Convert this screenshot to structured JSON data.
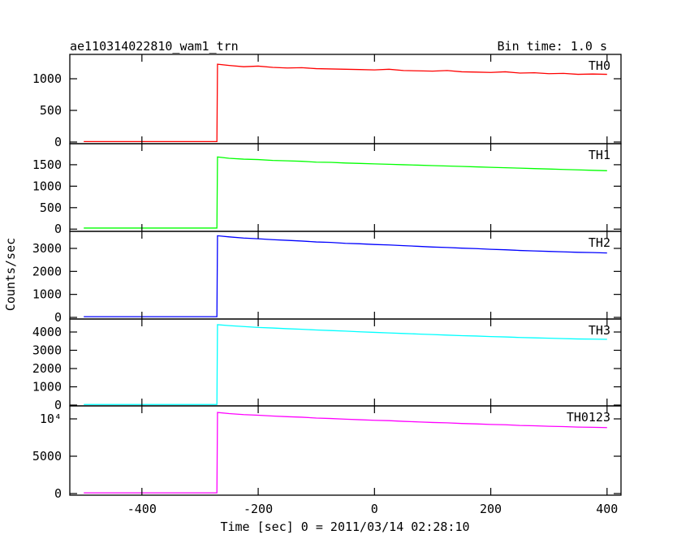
{
  "header": {
    "title": "ae110314022810_wam1_trn",
    "bin_time": "Bin time: 1.0 s"
  },
  "y_label": "Counts/sec",
  "x_label": "Time [sec] 0 = 2011/03/14 02:28:10",
  "chart_data": [
    {
      "type": "line",
      "x": [
        -500,
        -271,
        -270,
        -250,
        -225,
        -200,
        -175,
        -150,
        -125,
        -100,
        -75,
        -50,
        -25,
        0,
        25,
        50,
        75,
        100,
        125,
        150,
        175,
        200,
        225,
        250,
        275,
        300,
        325,
        350,
        375,
        400
      ],
      "series": [
        {
          "name": "TH0",
          "color": "#ff0000",
          "values": [
            8,
            8,
            1230,
            1210,
            1190,
            1200,
            1180,
            1170,
            1175,
            1160,
            1155,
            1150,
            1145,
            1140,
            1150,
            1130,
            1125,
            1120,
            1130,
            1110,
            1105,
            1100,
            1110,
            1090,
            1095,
            1080,
            1085,
            1070,
            1075,
            1070
          ]
        }
      ],
      "xlim": [
        -524,
        424
      ],
      "xticks": [
        -400,
        -200,
        0,
        200,
        400
      ],
      "ylim": [
        -26,
        1385
      ],
      "yticks": [
        0,
        500,
        1000
      ]
    },
    {
      "type": "line",
      "x": [
        -500,
        -271,
        -270,
        -250,
        -225,
        -200,
        -175,
        -150,
        -125,
        -100,
        -75,
        -50,
        -25,
        0,
        25,
        50,
        75,
        100,
        125,
        150,
        175,
        200,
        225,
        250,
        275,
        300,
        325,
        350,
        375,
        400
      ],
      "series": [
        {
          "name": "TH1",
          "color": "#00ff00",
          "values": [
            25,
            25,
            1680,
            1650,
            1630,
            1620,
            1600,
            1590,
            1580,
            1560,
            1555,
            1540,
            1530,
            1520,
            1510,
            1500,
            1490,
            1480,
            1470,
            1460,
            1450,
            1440,
            1430,
            1420,
            1410,
            1400,
            1390,
            1380,
            1370,
            1360
          ]
        }
      ],
      "xlim": [
        -524,
        424
      ],
      "xticks": [
        -400,
        -200,
        0,
        200,
        400
      ],
      "ylim": [
        -52,
        1990
      ],
      "yticks": [
        0,
        500,
        1000,
        1500
      ]
    },
    {
      "type": "line",
      "x": [
        -500,
        -271,
        -270,
        -250,
        -225,
        -200,
        -175,
        -150,
        -125,
        -100,
        -75,
        -50,
        -25,
        0,
        25,
        50,
        75,
        100,
        125,
        150,
        175,
        200,
        225,
        250,
        275,
        300,
        325,
        350,
        375,
        400
      ],
      "series": [
        {
          "name": "TH2",
          "color": "#0000ff",
          "values": [
            30,
            30,
            3550,
            3500,
            3450,
            3420,
            3380,
            3350,
            3320,
            3280,
            3260,
            3220,
            3200,
            3170,
            3150,
            3120,
            3090,
            3060,
            3040,
            3010,
            2990,
            2960,
            2940,
            2910,
            2890,
            2870,
            2850,
            2830,
            2820,
            2800
          ]
        }
      ],
      "xlim": [
        -524,
        424
      ],
      "xticks": [
        -400,
        -200,
        0,
        200,
        400
      ],
      "ylim": [
        -71,
        3741
      ],
      "yticks": [
        0,
        1000,
        2000,
        3000
      ]
    },
    {
      "type": "line",
      "x": [
        -500,
        -271,
        -270,
        -250,
        -225,
        -200,
        -175,
        -150,
        -125,
        -100,
        -75,
        -50,
        -25,
        0,
        25,
        50,
        75,
        100,
        125,
        150,
        175,
        200,
        225,
        250,
        275,
        300,
        325,
        350,
        375,
        400
      ],
      "series": [
        {
          "name": "TH3",
          "color": "#00ffff",
          "values": [
            35,
            35,
            4400,
            4350,
            4300,
            4250,
            4220,
            4180,
            4150,
            4110,
            4080,
            4050,
            4010,
            3980,
            3950,
            3920,
            3890,
            3860,
            3830,
            3800,
            3780,
            3750,
            3730,
            3700,
            3680,
            3660,
            3640,
            3620,
            3610,
            3600
          ]
        }
      ],
      "xlim": [
        -524,
        424
      ],
      "xticks": [
        -400,
        -200,
        0,
        200,
        400
      ],
      "ylim": [
        -44,
        4711
      ],
      "yticks": [
        0,
        1000,
        2000,
        3000,
        4000
      ]
    },
    {
      "type": "line",
      "x": [
        -500,
        -271,
        -270,
        -250,
        -225,
        -200,
        -175,
        -150,
        -125,
        -100,
        -75,
        -50,
        -25,
        0,
        25,
        50,
        75,
        100,
        125,
        150,
        175,
        200,
        225,
        250,
        275,
        300,
        325,
        350,
        375,
        400
      ],
      "series": [
        {
          "name": "TH0123",
          "color": "#ff00ff",
          "values": [
            98,
            98,
            10860,
            10710,
            10570,
            10490,
            10380,
            10290,
            10225,
            10110,
            10050,
            9960,
            9885,
            9810,
            9760,
            9670,
            9595,
            9520,
            9470,
            9380,
            9325,
            9250,
            9210,
            9120,
            9075,
            9010,
            8965,
            8900,
            8875,
            8830
          ]
        }
      ],
      "xlim": [
        -524,
        424
      ],
      "xticks": [
        -400,
        -200,
        {
          "value": 0,
          "label": "0"
        },
        200,
        400
      ],
      "ylim": [
        -217,
        11739
      ],
      "yticks": [
        0,
        5000,
        {
          "value": 10000,
          "label": "10⁴"
        }
      ]
    }
  ]
}
